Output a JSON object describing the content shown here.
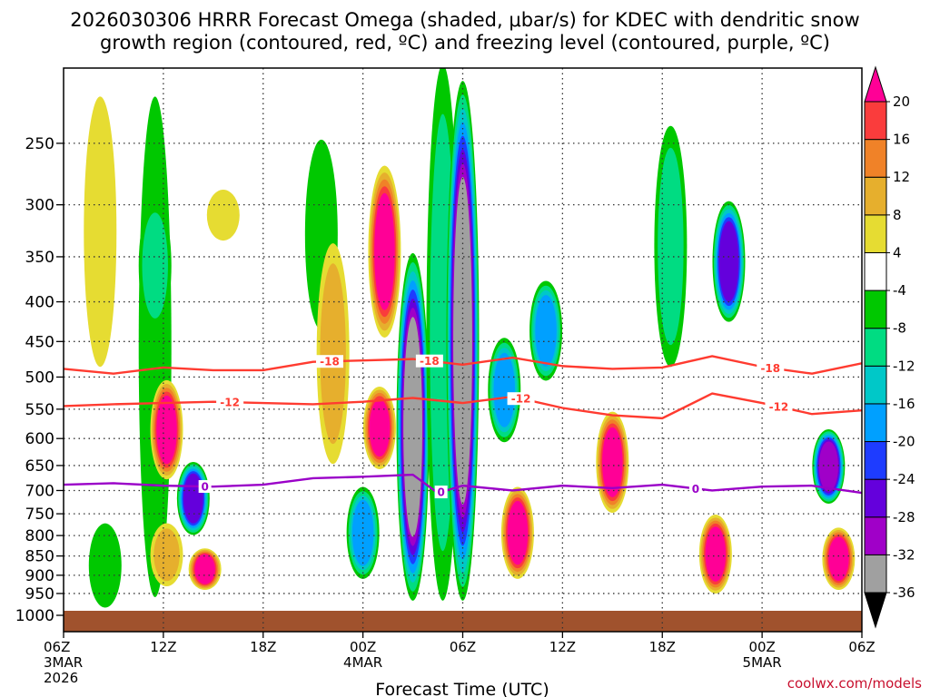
{
  "chart_data": {
    "type": "heatmap",
    "title_line1": "2026030306 HRRR Forecast Omega (shaded, μbar/s) for KDEC with dendritic snow",
    "title_line2": "growth region (contoured, red, ºC) and freezing level (contoured, purple, ºC)",
    "xlabel": "Forecast Time (UTC)",
    "ylabel": "",
    "credit": "coolwx.com/models",
    "x_ticks": [
      {
        "hour": 0,
        "l1": "06Z",
        "l2": "3MAR",
        "l3": "2026"
      },
      {
        "hour": 6,
        "l1": "12Z",
        "l2": "",
        "l3": ""
      },
      {
        "hour": 12,
        "l1": "18Z",
        "l2": "",
        "l3": ""
      },
      {
        "hour": 18,
        "l1": "00Z",
        "l2": "4MAR",
        "l3": ""
      },
      {
        "hour": 24,
        "l1": "06Z",
        "l2": "",
        "l3": ""
      },
      {
        "hour": 30,
        "l1": "12Z",
        "l2": "",
        "l3": ""
      },
      {
        "hour": 36,
        "l1": "18Z",
        "l2": "",
        "l3": ""
      },
      {
        "hour": 42,
        "l1": "00Z",
        "l2": "5MAR",
        "l3": ""
      },
      {
        "hour": 48,
        "l1": "06Z",
        "l2": "",
        "l3": ""
      }
    ],
    "xlim": [
      0,
      48
    ],
    "y_scale": "pressure",
    "ylim": [
      1000,
      200
    ],
    "y_ticks": [
      250,
      300,
      350,
      400,
      450,
      500,
      550,
      600,
      650,
      700,
      750,
      800,
      850,
      900,
      950,
      1000
    ],
    "grid": true,
    "colorbar": {
      "boundaries": [
        -36,
        -32,
        -28,
        -24,
        -20,
        -16,
        -12,
        -8,
        -4,
        4,
        8,
        12,
        16,
        20
      ],
      "labels": [
        "20",
        "16",
        "12",
        "8",
        "4",
        "-4",
        "-8",
        "-12",
        "-16",
        "-20",
        "-24",
        "-28",
        "-32",
        "-36"
      ],
      "colors": [
        "#000000",
        "#a0a0a0",
        "#a000c8",
        "#6400dc",
        "#1e3cff",
        "#00a0ff",
        "#00c8c8",
        "#00dc82",
        "#00c800",
        "#ffffff",
        "#e6dc32",
        "#e6af2d",
        "#f08228",
        "#fa3c3c",
        "#ff0096"
      ]
    },
    "colors": {
      "ground": "#a0522d",
      "dgz_contour": "#ff3b30",
      "freezing_contour": "#9a00c8"
    },
    "contours": [
      {
        "name": "-18",
        "color": "dgz",
        "label_hours": [
          16,
          22,
          42.5
        ],
        "x": [
          0,
          3,
          6,
          9,
          12,
          15,
          18,
          21,
          24,
          27,
          30,
          33,
          36,
          39,
          42,
          45,
          48
        ],
        "p": [
          488,
          495,
          486,
          490,
          490,
          478,
          476,
          474,
          482,
          472,
          484,
          488,
          486,
          470,
          485,
          495,
          480
        ]
      },
      {
        "name": "-12",
        "color": "dgz",
        "label_hours": [
          10,
          27.5,
          43
        ],
        "x": [
          0,
          3,
          6,
          9,
          12,
          15,
          18,
          21,
          24,
          27,
          30,
          33,
          36,
          39,
          42,
          45,
          48
        ],
        "p": [
          545,
          542,
          540,
          538,
          540,
          542,
          538,
          532,
          540,
          530,
          548,
          560,
          565,
          525,
          540,
          558,
          552
        ]
      },
      {
        "name": "0",
        "color": "freezing",
        "label_hours": [
          8.5,
          22.7,
          38
        ],
        "x": [
          0,
          3,
          6,
          9,
          12,
          15,
          18,
          21,
          22.5,
          24,
          27,
          30,
          33,
          36,
          39,
          42,
          45,
          48
        ],
        "p": [
          688,
          685,
          690,
          692,
          688,
          675,
          672,
          668,
          705,
          690,
          700,
          690,
          695,
          688,
          700,
          692,
          690,
          705
        ]
      }
    ],
    "series": [
      {
        "hour": 2.2,
        "p_top": 220,
        "p_bot": 480,
        "value": 5
      },
      {
        "hour": 2.5,
        "p_top": 780,
        "p_bot": 980,
        "value": -8
      },
      {
        "hour": 5.5,
        "p_top": 220,
        "p_bot": 950,
        "value": -8
      },
      {
        "hour": 5.5,
        "p_top": 300,
        "p_bot": 430,
        "value": -12
      },
      {
        "hour": 6.2,
        "p_top": 510,
        "p_bot": 670,
        "value": 22
      },
      {
        "hour": 6.2,
        "p_top": 780,
        "p_bot": 920,
        "value": 10
      },
      {
        "hour": 7.8,
        "p_top": 650,
        "p_bot": 790,
        "value": -26
      },
      {
        "hour": 8.5,
        "p_top": 840,
        "p_bot": 930,
        "value": 22
      },
      {
        "hour": 9.6,
        "p_top": 290,
        "p_bot": 330,
        "value": 5
      },
      {
        "hour": 15.5,
        "p_top": 250,
        "p_bot": 430,
        "value": -8
      },
      {
        "hour": 16.2,
        "p_top": 340,
        "p_bot": 640,
        "value": 8
      },
      {
        "hour": 19.3,
        "p_top": 270,
        "p_bot": 440,
        "value": 22
      },
      {
        "hour": 19.0,
        "p_top": 520,
        "p_bot": 650,
        "value": 22
      },
      {
        "hour": 18.0,
        "p_top": 700,
        "p_bot": 900,
        "value": -20
      },
      {
        "hour": 21.0,
        "p_top": 350,
        "p_bot": 960,
        "value": -36
      },
      {
        "hour": 22.8,
        "p_top": 200,
        "p_bot": 960,
        "value": -12
      },
      {
        "hour": 24.0,
        "p_top": 210,
        "p_bot": 960,
        "value": -36
      },
      {
        "hour": 26.5,
        "p_top": 450,
        "p_bot": 600,
        "value": -20
      },
      {
        "hour": 27.3,
        "p_top": 700,
        "p_bot": 900,
        "value": 22
      },
      {
        "hour": 29.0,
        "p_top": 380,
        "p_bot": 500,
        "value": -20
      },
      {
        "hour": 33.0,
        "p_top": 560,
        "p_bot": 740,
        "value": 22
      },
      {
        "hour": 36.5,
        "p_top": 240,
        "p_bot": 480,
        "value": -12
      },
      {
        "hour": 39.2,
        "p_top": 760,
        "p_bot": 940,
        "value": 22
      },
      {
        "hour": 40.0,
        "p_top": 300,
        "p_bot": 420,
        "value": -26
      },
      {
        "hour": 46.0,
        "p_top": 590,
        "p_bot": 720,
        "value": -30
      },
      {
        "hour": 46.6,
        "p_top": 790,
        "p_bot": 930,
        "value": 22
      }
    ]
  }
}
